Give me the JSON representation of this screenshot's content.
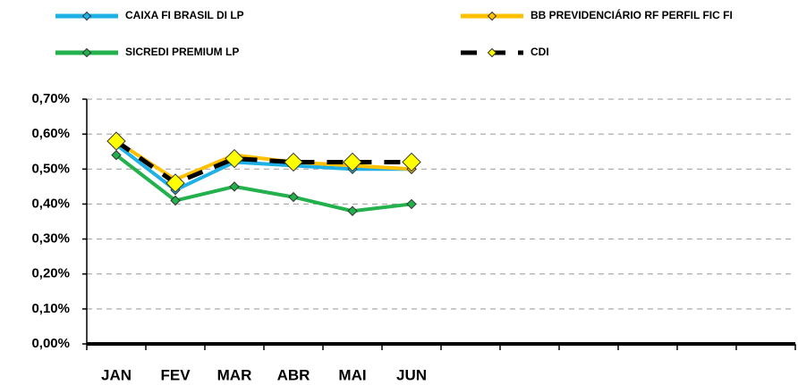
{
  "chart_data": {
    "type": "line",
    "categories": [
      "JAN",
      "FEV",
      "MAR",
      "ABR",
      "MAI",
      "JUN",
      null,
      null,
      null,
      null,
      null,
      null
    ],
    "series": [
      {
        "name": "CAIXA FI BRASIL DI LP",
        "color": "#1fb0e6",
        "marker_color": "#1fb0e6",
        "values": [
          0.57,
          0.44,
          0.52,
          0.51,
          0.5,
          0.5,
          null,
          null,
          null,
          null,
          null,
          null
        ]
      },
      {
        "name": "BB PREVIDENCIÁRIO RF PERFIL FIC FI",
        "color": "#ffc000",
        "marker_color": "#ffc000",
        "values": [
          0.58,
          0.47,
          0.54,
          0.52,
          0.51,
          0.5,
          null,
          null,
          null,
          null,
          null,
          null
        ]
      },
      {
        "name": "SICREDI PREMIUM LP",
        "color": "#22b14c",
        "marker_color": "#22b14c",
        "values": [
          0.54,
          0.41,
          0.45,
          0.42,
          0.38,
          0.4,
          null,
          null,
          null,
          null,
          null,
          null
        ]
      },
      {
        "name": "CDI",
        "color": "#000000",
        "marker_color": "#ffff00",
        "dashed": true,
        "values": [
          0.58,
          0.46,
          0.53,
          0.52,
          0.52,
          0.52,
          null,
          null,
          null,
          null,
          null,
          null
        ]
      }
    ],
    "ylim": [
      0,
      0.7
    ],
    "yticks": [
      {
        "value": 0,
        "label": "0,00%"
      },
      {
        "value": 0.1,
        "label": "0,10%"
      },
      {
        "value": 0.2,
        "label": "0,20%"
      },
      {
        "value": 0.3,
        "label": "0,30%"
      },
      {
        "value": 0.4,
        "label": "0,40%"
      },
      {
        "value": 0.5,
        "label": "0,50%"
      },
      {
        "value": 0.6,
        "label": "0,60%"
      },
      {
        "value": 0.7,
        "label": "0,70%"
      }
    ],
    "grid": true,
    "legend": "top"
  }
}
